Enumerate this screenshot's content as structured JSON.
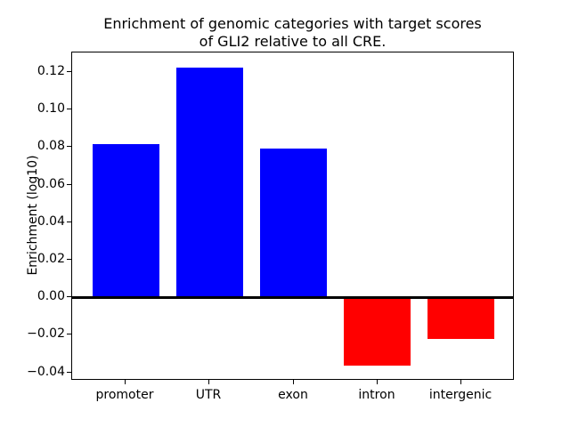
{
  "chart_data": {
    "type": "bar",
    "title": "Enrichment of genomic categories with target scores\nof GLI2 relative to all CRE.",
    "title_lines": [
      "Enrichment of genomic categories with target scores",
      "of GLI2 relative to all CRE."
    ],
    "xlabel": "",
    "ylabel": "Enrichment (log10)",
    "categories": [
      "promoter",
      "UTR",
      "exon",
      "intron",
      "intergenic"
    ],
    "values": [
      0.0815,
      0.1225,
      0.0795,
      -0.0365,
      -0.0225
    ],
    "positive_color": "#0000ff",
    "negative_color": "#ff0000",
    "axis_color": "#000000",
    "background_color": "#ffffff",
    "bar_width": 0.8,
    "yticks": [
      -0.04,
      -0.02,
      0.0,
      0.02,
      0.04,
      0.06,
      0.08,
      0.1,
      0.12
    ],
    "ytick_labels": [
      "−0.04",
      "−0.02",
      "0.00",
      "0.02",
      "0.04",
      "0.06",
      "0.08",
      "0.10",
      "0.12"
    ],
    "ylim": [
      -0.0445,
      0.1305
    ],
    "xlim": [
      -0.64,
      4.64
    ],
    "grid": false,
    "zero_line": true,
    "legend": null
  }
}
